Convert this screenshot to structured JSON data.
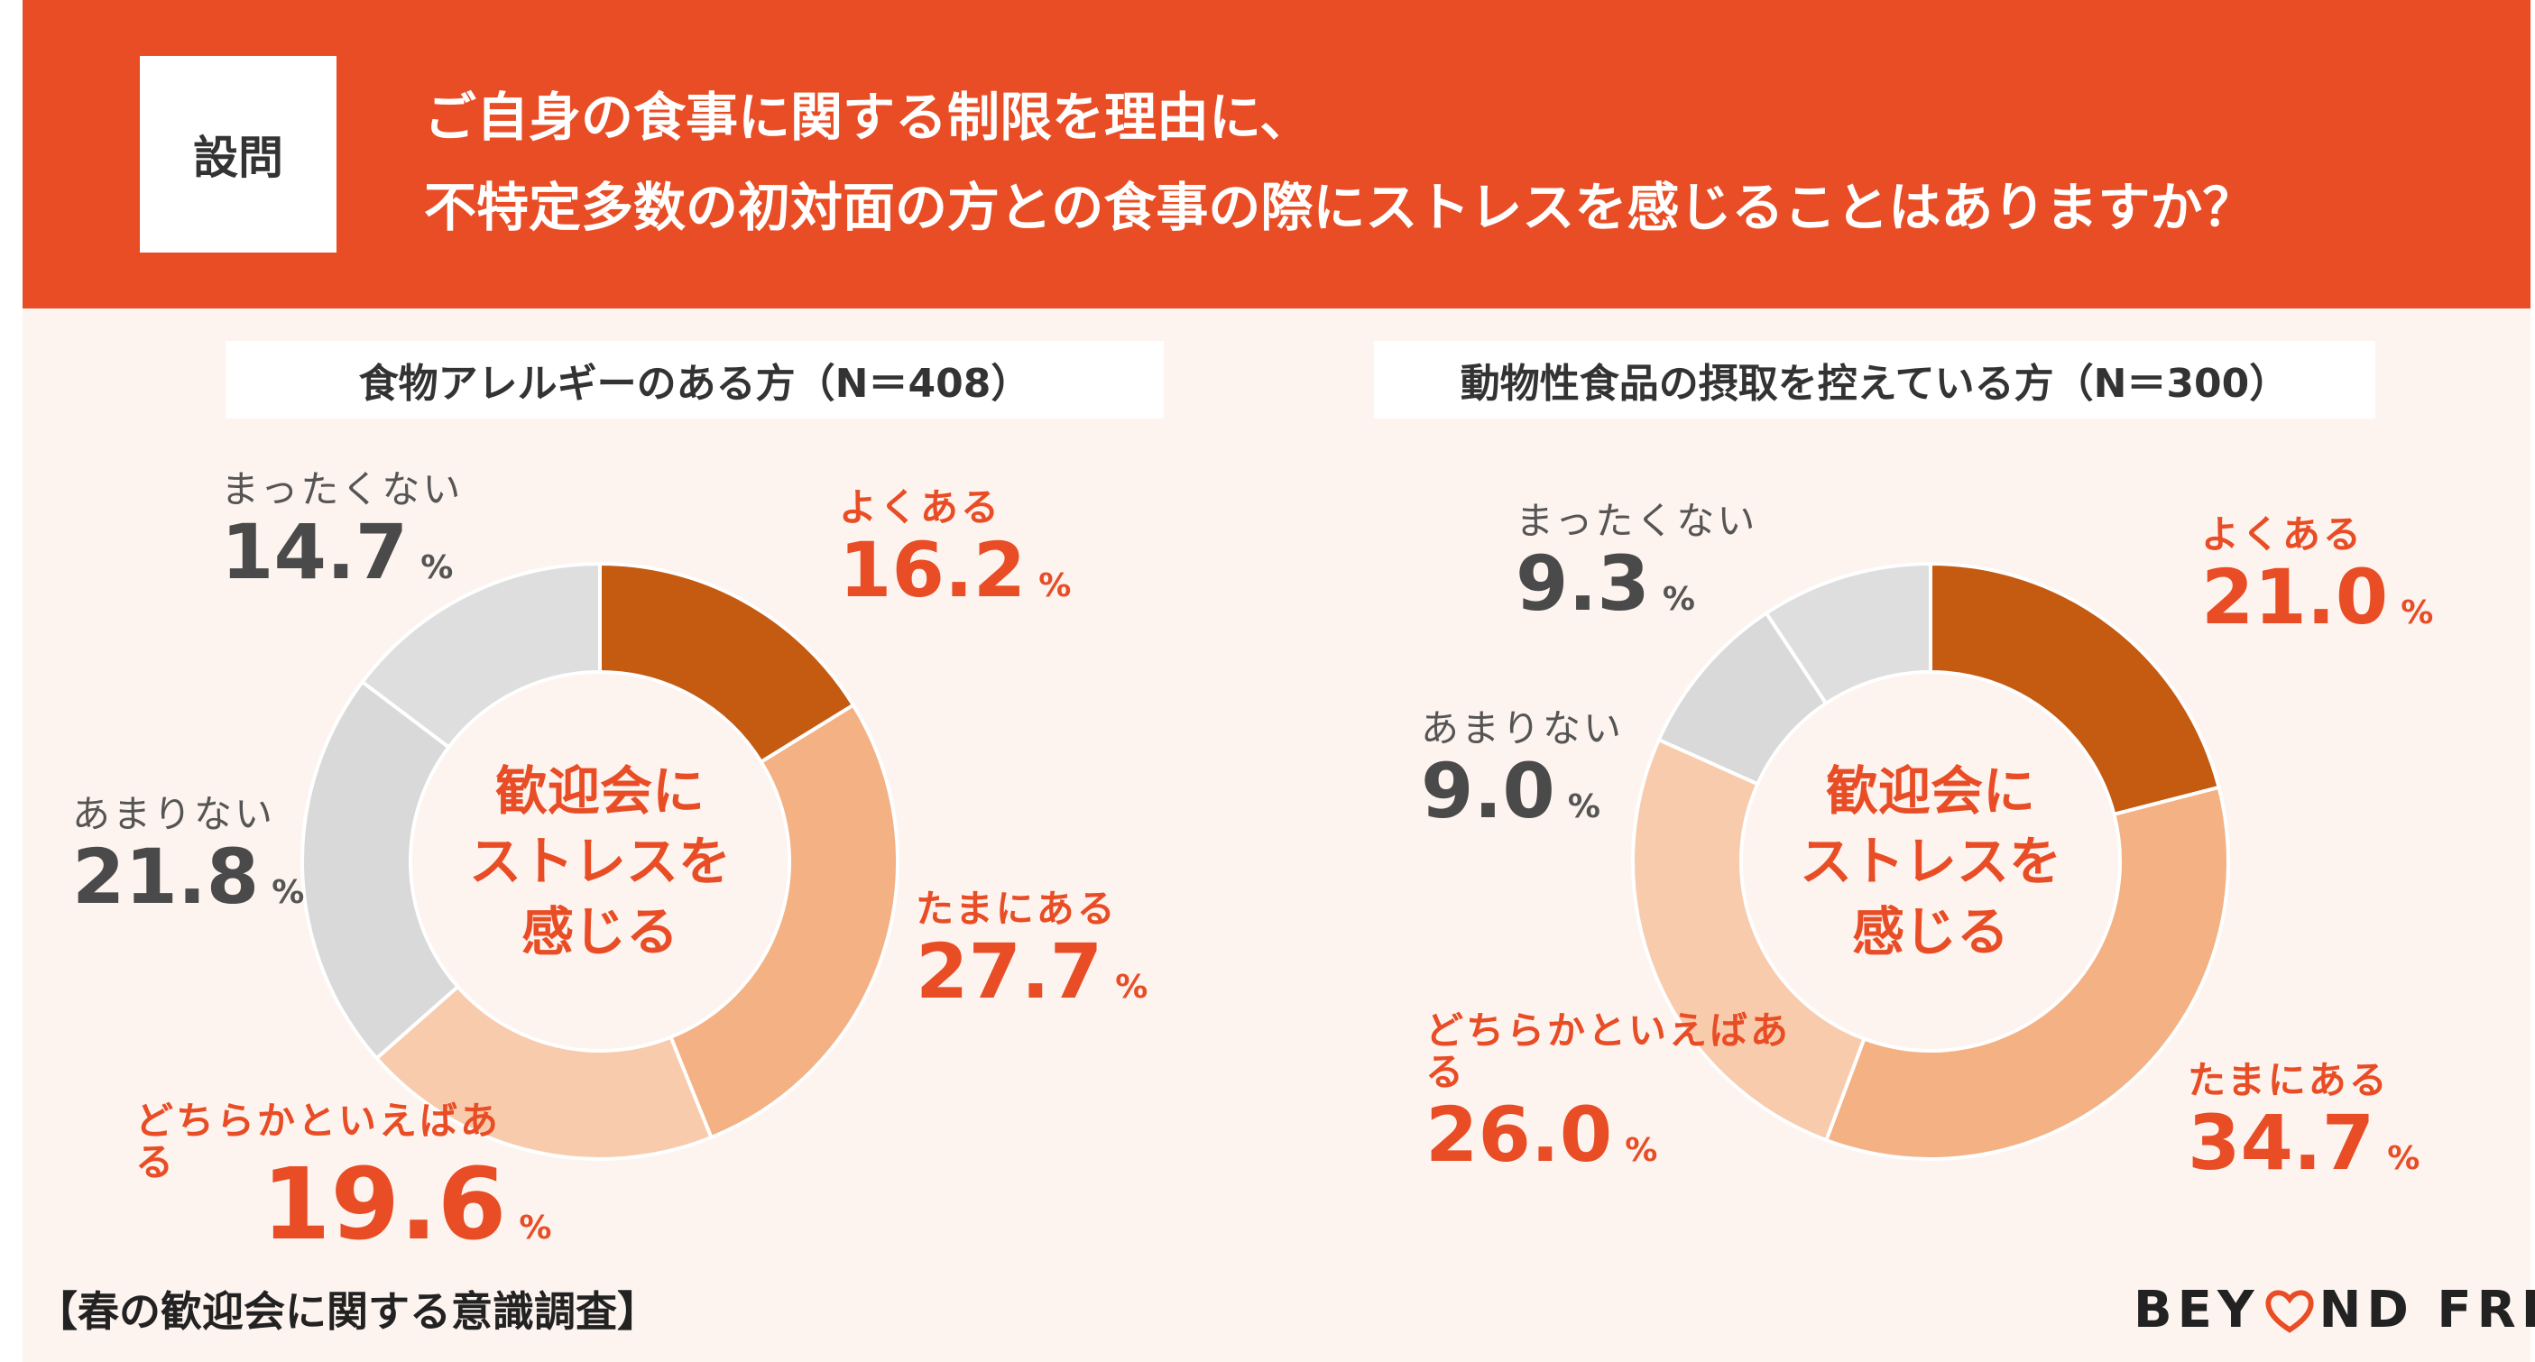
{
  "header": {
    "tag": "設問",
    "question_line1": "ご自身の食事に関する制限を理由に、",
    "question_line2": "不特定多数の初対面の方との食事の際にストレスを感じることはありますか？"
  },
  "center_label": [
    "歓迎会に",
    "ストレスを",
    "感じる"
  ],
  "pct_symbol": "%",
  "footer": {
    "survey_title": "【春の歓迎会に関する意識調査】",
    "logo_left": "BEY",
    "logo_right": "ND FREE"
  },
  "colors": {
    "header_bg": "#e84d25",
    "panel_bg": "#fdf3ef",
    "slices": [
      "#c55a11",
      "#f4b183",
      "#f8cbad",
      "#d9d9d9",
      "#dedede"
    ]
  },
  "chart_data": [
    {
      "type": "pie",
      "title": "食物アレルギーのある方（N＝408）",
      "categories": [
        "よくある",
        "たまにある",
        "どちらかといえばある",
        "あまりない",
        "まったくない"
      ],
      "values": [
        16.2,
        27.7,
        19.6,
        21.8,
        14.7
      ],
      "unit": "%"
    },
    {
      "type": "pie",
      "title": "動物性食品の摂取を控えている方（N＝300）",
      "categories": [
        "よくある",
        "たまにある",
        "どちらかといえばある",
        "あまりない",
        "まったくない"
      ],
      "values": [
        21.0,
        34.7,
        26.0,
        9.0,
        9.3
      ],
      "unit": "%"
    }
  ]
}
